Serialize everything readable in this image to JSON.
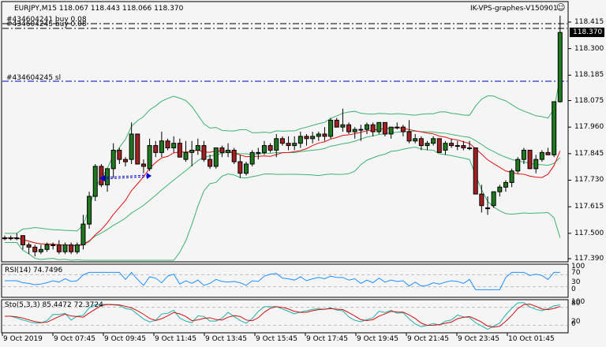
{
  "header": {
    "symbol_info": "EURJPY,M15  118.067 118.443 118.066 118.370",
    "terminal": "IK-VPS-graphes-V150901",
    "smiley_icon": "☺"
  },
  "orders": [
    {
      "label": "#434604241 buy 0.08",
      "price": 118.415
    },
    {
      "label": "#434604245 buy 0.08",
      "price": 118.395
    },
    {
      "label": "#434604245 sl",
      "price": 118.16
    }
  ],
  "current_price": "118.370",
  "colors": {
    "bull": "#1f7a1f",
    "bear": "#a52020",
    "bb": "#3cb371",
    "ma": "#e01010",
    "rsi": "#1e90ff",
    "sto_main": "#20b2aa",
    "sto_signal": "#d01010",
    "order_line": "#0000c0",
    "background": "#f5f5f5"
  },
  "chart_data": [
    {
      "type": "candlestick",
      "title": "EURJPY,M15",
      "ohlc_header": {
        "open": 118.067,
        "high": 118.443,
        "low": 118.066,
        "close": 118.37
      },
      "y_ticks": [
        118.415,
        118.3,
        118.185,
        118.075,
        117.96,
        117.845,
        117.73,
        117.615,
        117.5,
        117.39
      ],
      "ylim": [
        117.37,
        118.445
      ],
      "x_ticks": [
        "9 Oct 2019",
        "9 Oct 07:45",
        "9 Oct 09:45",
        "9 Oct 11:45",
        "9 Oct 13:45",
        "9 Oct 15:45",
        "9 Oct 17:45",
        "9 Oct 19:45",
        "9 Oct 21:45",
        "9 Oct 23:45",
        "10 Oct 01:45"
      ],
      "candles": [
        [
          117.48,
          117.49,
          117.47,
          117.48
        ],
        [
          117.48,
          117.49,
          117.47,
          117.48
        ],
        [
          117.48,
          117.5,
          117.47,
          117.48
        ],
        [
          117.49,
          117.49,
          117.43,
          117.45
        ],
        [
          117.45,
          117.46,
          117.41,
          117.44
        ],
        [
          117.44,
          117.45,
          117.4,
          117.42
        ],
        [
          117.42,
          117.45,
          117.41,
          117.43
        ],
        [
          117.43,
          117.46,
          117.42,
          117.45
        ],
        [
          117.45,
          117.46,
          117.43,
          117.45
        ],
        [
          117.45,
          117.47,
          117.41,
          117.42
        ],
        [
          117.42,
          117.46,
          117.41,
          117.45
        ],
        [
          117.45,
          117.46,
          117.41,
          117.42
        ],
        [
          117.42,
          117.46,
          117.41,
          117.45
        ],
        [
          117.45,
          117.58,
          117.43,
          117.54
        ],
        [
          117.54,
          117.68,
          117.52,
          117.66
        ],
        [
          117.66,
          117.8,
          117.64,
          117.79
        ],
        [
          117.79,
          117.8,
          117.7,
          117.71
        ],
        [
          117.71,
          117.78,
          117.68,
          117.78
        ],
        [
          117.78,
          117.89,
          117.74,
          117.86
        ],
        [
          117.86,
          117.87,
          117.8,
          117.82
        ],
        [
          117.82,
          117.83,
          117.79,
          117.81
        ],
        [
          117.82,
          117.98,
          117.8,
          117.93
        ],
        [
          117.93,
          117.93,
          117.8,
          117.8
        ],
        [
          117.8,
          117.82,
          117.76,
          117.79
        ],
        [
          117.78,
          117.91,
          117.77,
          117.88
        ],
        [
          117.88,
          117.9,
          117.83,
          117.85
        ],
        [
          117.85,
          117.94,
          117.83,
          117.9
        ],
        [
          117.9,
          117.91,
          117.86,
          117.87
        ],
        [
          117.87,
          117.92,
          117.85,
          117.89
        ],
        [
          117.89,
          117.91,
          117.83,
          117.83
        ],
        [
          117.82,
          117.9,
          117.81,
          117.85
        ],
        [
          117.85,
          117.9,
          117.79,
          117.86
        ],
        [
          117.86,
          117.91,
          117.84,
          117.88
        ],
        [
          117.88,
          117.9,
          117.81,
          117.82
        ],
        [
          117.82,
          117.84,
          117.78,
          117.79
        ],
        [
          117.79,
          117.87,
          117.78,
          117.87
        ],
        [
          117.87,
          117.88,
          117.83,
          117.85
        ],
        [
          117.85,
          117.89,
          117.83,
          117.86
        ],
        [
          117.86,
          117.87,
          117.8,
          117.81
        ],
        [
          117.81,
          117.84,
          117.74,
          117.76
        ],
        [
          117.76,
          117.81,
          117.75,
          117.8
        ],
        [
          117.8,
          117.86,
          117.79,
          117.85
        ],
        [
          117.85,
          117.87,
          117.82,
          117.85
        ],
        [
          117.85,
          117.9,
          117.84,
          117.88
        ],
        [
          117.88,
          117.89,
          117.85,
          117.86
        ],
        [
          117.86,
          117.93,
          117.83,
          117.91
        ],
        [
          117.91,
          117.92,
          117.88,
          117.89
        ],
        [
          117.89,
          117.92,
          117.86,
          117.88
        ],
        [
          117.88,
          117.92,
          117.86,
          117.89
        ],
        [
          117.89,
          117.94,
          117.87,
          117.92
        ],
        [
          117.92,
          117.93,
          117.88,
          117.91
        ],
        [
          117.91,
          117.94,
          117.89,
          117.92
        ],
        [
          117.92,
          117.94,
          117.9,
          117.93
        ],
        [
          117.93,
          117.96,
          117.9,
          117.92
        ],
        [
          117.92,
          118.0,
          117.91,
          117.99
        ],
        [
          117.99,
          118.0,
          117.96,
          117.96
        ],
        [
          117.96,
          118.04,
          117.94,
          117.97
        ],
        [
          117.97,
          117.98,
          117.93,
          117.94
        ],
        [
          117.94,
          117.96,
          117.91,
          117.95
        ],
        [
          117.95,
          117.97,
          117.9,
          117.95
        ],
        [
          117.95,
          117.98,
          117.93,
          117.97
        ],
        [
          117.97,
          117.98,
          117.92,
          117.94
        ],
        [
          117.94,
          117.98,
          117.93,
          117.98
        ],
        [
          117.98,
          117.98,
          117.92,
          117.93
        ],
        [
          117.93,
          117.96,
          117.91,
          117.96
        ],
        [
          117.96,
          117.98,
          117.95,
          117.96
        ],
        [
          117.96,
          117.97,
          117.92,
          117.94
        ],
        [
          117.94,
          117.99,
          117.89,
          117.9
        ],
        [
          117.9,
          117.93,
          117.89,
          117.91
        ],
        [
          117.91,
          117.92,
          117.86,
          117.88
        ],
        [
          117.88,
          117.9,
          117.86,
          117.89
        ],
        [
          117.89,
          117.92,
          117.88,
          117.91
        ],
        [
          117.91,
          117.91,
          117.85,
          117.85
        ],
        [
          117.86,
          117.9,
          117.84,
          117.89
        ],
        [
          117.89,
          117.91,
          117.87,
          117.88
        ],
        [
          117.88,
          117.9,
          117.86,
          117.88
        ],
        [
          117.88,
          117.9,
          117.86,
          117.87
        ],
        [
          117.87,
          117.9,
          117.86,
          117.87
        ],
        [
          117.87,
          117.87,
          117.67,
          117.67
        ],
        [
          117.67,
          117.71,
          117.59,
          117.62
        ],
        [
          117.61,
          117.66,
          117.58,
          117.61
        ],
        [
          117.62,
          117.68,
          117.61,
          117.68
        ],
        [
          117.68,
          117.71,
          117.66,
          117.7
        ],
        [
          117.7,
          117.73,
          117.68,
          117.72
        ],
        [
          117.72,
          117.78,
          117.7,
          117.77
        ],
        [
          117.77,
          117.83,
          117.76,
          117.82
        ],
        [
          117.82,
          117.87,
          117.8,
          117.86
        ],
        [
          117.86,
          117.86,
          117.78,
          117.78
        ],
        [
          117.78,
          117.84,
          117.76,
          117.82
        ],
        [
          117.82,
          117.86,
          117.81,
          117.85
        ],
        [
          117.85,
          117.87,
          117.84,
          117.84
        ],
        [
          117.84,
          118.07,
          117.83,
          118.07
        ],
        [
          118.07,
          118.443,
          118.066,
          118.37
        ]
      ],
      "overlays": [
        "Bollinger Bands (green)",
        "Moving Average (red)"
      ]
    },
    {
      "type": "line",
      "title": "RSI(14) 74.7496",
      "value": 74.7496,
      "y_ticks": [
        100,
        70,
        30,
        0
      ],
      "ylim": [
        0,
        100
      ],
      "levels": [
        70,
        30
      ]
    },
    {
      "type": "line",
      "title": "Sto(5,3,3) 85.4472 72.3724",
      "series": [
        {
          "name": "Main",
          "last": 85.4472
        },
        {
          "name": "Signal",
          "last": 72.3724
        }
      ],
      "y_ticks": [
        100,
        80,
        20,
        0
      ],
      "ylim": [
        0,
        100
      ],
      "levels": [
        80,
        20
      ]
    }
  ],
  "rsi_label": "RSI(14) 74.7496",
  "sto_label": "Sto(5,3,3) 85.4472 72.3724",
  "rsi_ticks": [
    "100",
    "70",
    "30",
    "0"
  ],
  "sto_ticks": [
    "100",
    "80",
    "20",
    "0"
  ],
  "price_ticks": [
    "118.415",
    "118.300",
    "118.185",
    "118.075",
    "117.960",
    "117.845",
    "117.730",
    "117.615",
    "117.500",
    "117.390"
  ],
  "time_ticks": [
    "9 Oct 2019",
    "9 Oct 07:45",
    "9 Oct 09:45",
    "9 Oct 11:45",
    "9 Oct 13:45",
    "9 Oct 15:45",
    "9 Oct 17:45",
    "9 Oct 19:45",
    "9 Oct 21:45",
    "9 Oct 23:45",
    "10 Oct 01:45"
  ]
}
